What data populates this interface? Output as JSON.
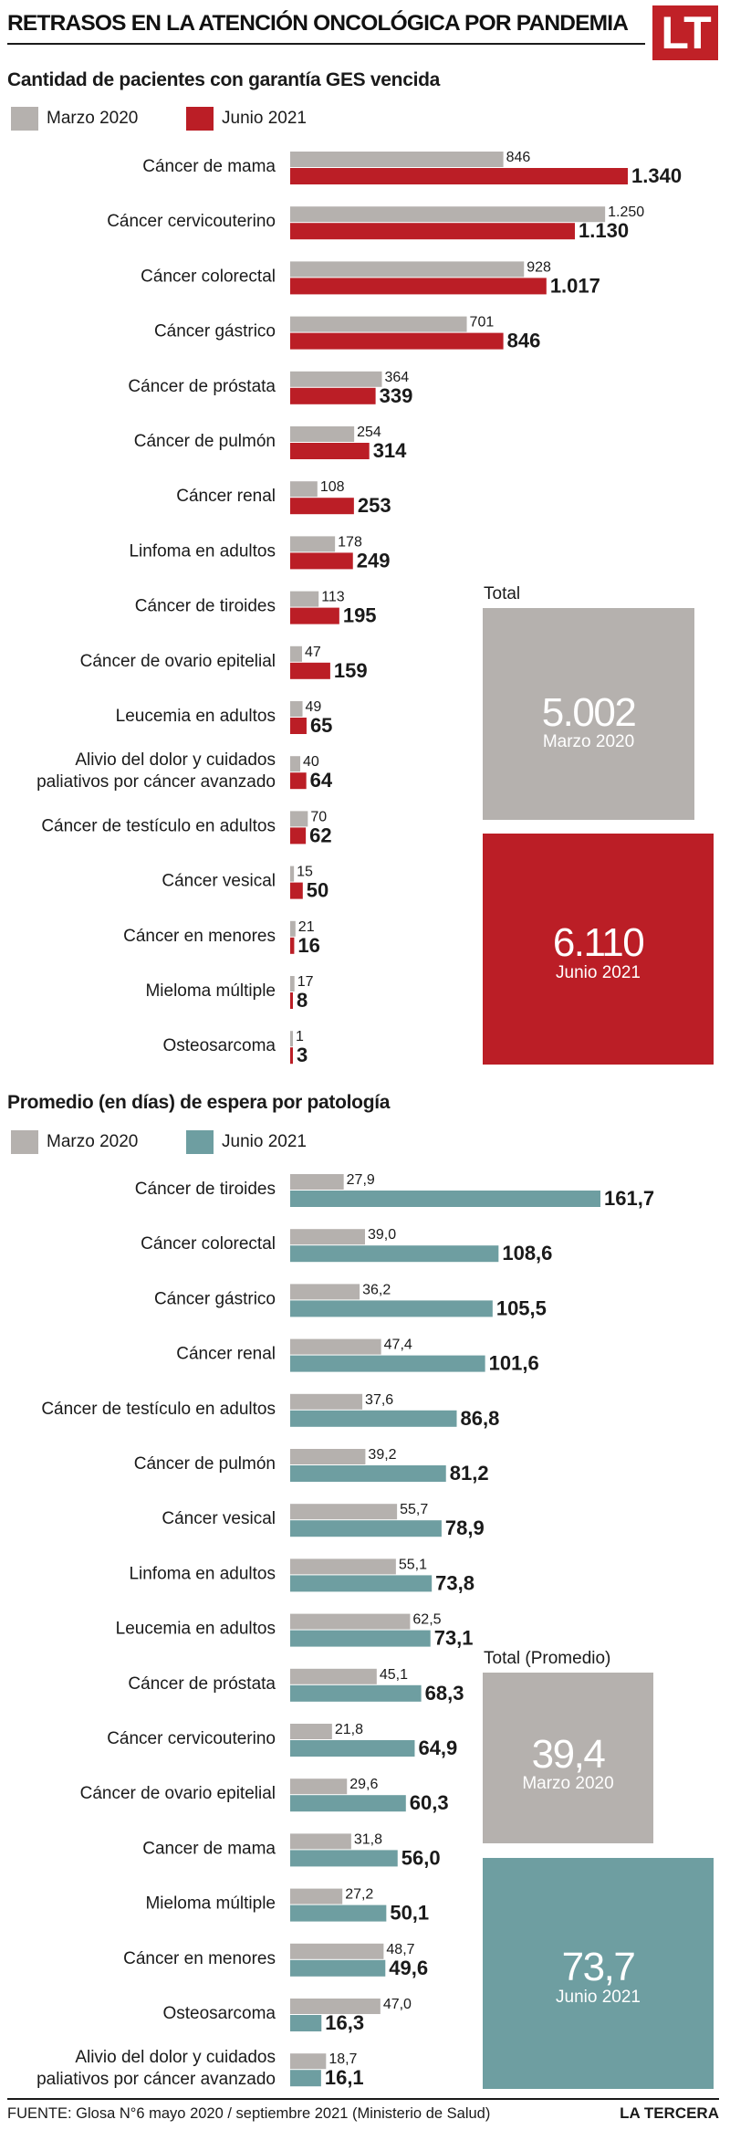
{
  "header": {
    "title": "RETRASOS EN LA ATENCIÓN ONCOLÓGICA POR PANDEMIA",
    "logo": "LT"
  },
  "colors": {
    "marzo": "#b5b1ae",
    "junio_patients": "#bb1e26",
    "junio_days": "#6e9ea1",
    "text": "#1a1a1a"
  },
  "chart_data": [
    {
      "type": "bar",
      "orientation": "horizontal",
      "title": "Cantidad de pacientes con garantía GES vencida",
      "categories": [
        "Cáncer de mama",
        "Cáncer cervicouterino",
        "Cáncer colorectal",
        "Cáncer gástrico",
        "Cáncer de próstata",
        "Cáncer de pulmón",
        "Cáncer renal",
        "Linfoma en adultos",
        "Cáncer de tiroides",
        "Cáncer de ovario epitelial",
        "Leucemia en adultos",
        "Alivio del dolor y cuidados\npaliativos por cáncer avanzado",
        "Cáncer de testículo en adultos",
        "Cáncer vesical",
        "Cáncer en menores",
        "Mieloma múltiple",
        "Osteosarcoma"
      ],
      "series": [
        {
          "name": "Marzo 2020",
          "values": [
            846,
            1250,
            928,
            701,
            364,
            254,
            108,
            178,
            113,
            47,
            49,
            40,
            70,
            15,
            21,
            17,
            1
          ],
          "labels": [
            "846",
            "1.250",
            "928",
            "701",
            "364",
            "254",
            "108",
            "178",
            "113",
            "47",
            "49",
            "40",
            "70",
            "15",
            "21",
            "17",
            "1"
          ]
        },
        {
          "name": "Junio 2021",
          "values": [
            1340,
            1130,
            1017,
            846,
            339,
            314,
            253,
            249,
            195,
            159,
            65,
            64,
            62,
            50,
            16,
            8,
            3
          ],
          "labels": [
            "1.340",
            "1.130",
            "1.017",
            "846",
            "339",
            "314",
            "253",
            "249",
            "195",
            "159",
            "65",
            "64",
            "62",
            "50",
            "16",
            "8",
            "3"
          ]
        }
      ],
      "total": {
        "label": "Total",
        "marzo_value": "5.002",
        "marzo_label": "Marzo 2020",
        "junio_value": "6.110",
        "junio_label": "Junio 2021"
      },
      "xlim": [
        0,
        1400
      ]
    },
    {
      "type": "bar",
      "orientation": "horizontal",
      "title": "Promedio (en días) de espera por patología",
      "categories": [
        "Cáncer de tiroides",
        "Cáncer colorectal",
        "Cáncer gástrico",
        "Cáncer renal",
        "Cáncer de testículo en adultos",
        "Cáncer de pulmón",
        "Cáncer vesical",
        "Linfoma en adultos",
        "Leucemia en adultos",
        "Cáncer de próstata",
        "Cáncer cervicouterino",
        "Cáncer de ovario epitelial",
        "Cancer de mama",
        "Mieloma múltiple",
        "Cáncer en menores",
        "Osteosarcoma",
        "Alivio del dolor y cuidados\npaliativos por cáncer avanzado"
      ],
      "series": [
        {
          "name": "Marzo 2020",
          "values": [
            27.9,
            39.0,
            36.2,
            47.4,
            37.6,
            39.2,
            55.7,
            55.1,
            62.5,
            45.1,
            21.8,
            29.6,
            31.8,
            27.2,
            48.7,
            47.0,
            18.7
          ],
          "labels": [
            "27,9",
            "39,0",
            "36,2",
            "47,4",
            "37,6",
            "39,2",
            "55,7",
            "55,1",
            "62,5",
            "45,1",
            "21,8",
            "29,6",
            "31,8",
            "27,2",
            "48,7",
            "47,0",
            "18,7"
          ]
        },
        {
          "name": "Junio 2021",
          "values": [
            161.7,
            108.6,
            105.5,
            101.6,
            86.8,
            81.2,
            78.9,
            73.8,
            73.1,
            68.3,
            64.9,
            60.3,
            56.0,
            50.1,
            49.6,
            16.3,
            16.1
          ],
          "labels": [
            "161,7",
            "108,6",
            "105,5",
            "101,6",
            "86,8",
            "81,2",
            "78,9",
            "73,8",
            "73,1",
            "68,3",
            "64,9",
            "60,3",
            "56,0",
            "50,1",
            "49,6",
            "16,3",
            "16,1"
          ]
        }
      ],
      "total": {
        "label": "Total (Promedio)",
        "marzo_value": "39,4",
        "marzo_label": "Marzo 2020",
        "junio_value": "73,7",
        "junio_label": "Junio 2021"
      },
      "xlim": [
        0,
        170
      ]
    }
  ],
  "footer": {
    "source": "FUENTE: Glosa N°6 mayo 2020 / septiembre 2021 (Ministerio de Salud)",
    "brand": "LA TERCERA"
  }
}
